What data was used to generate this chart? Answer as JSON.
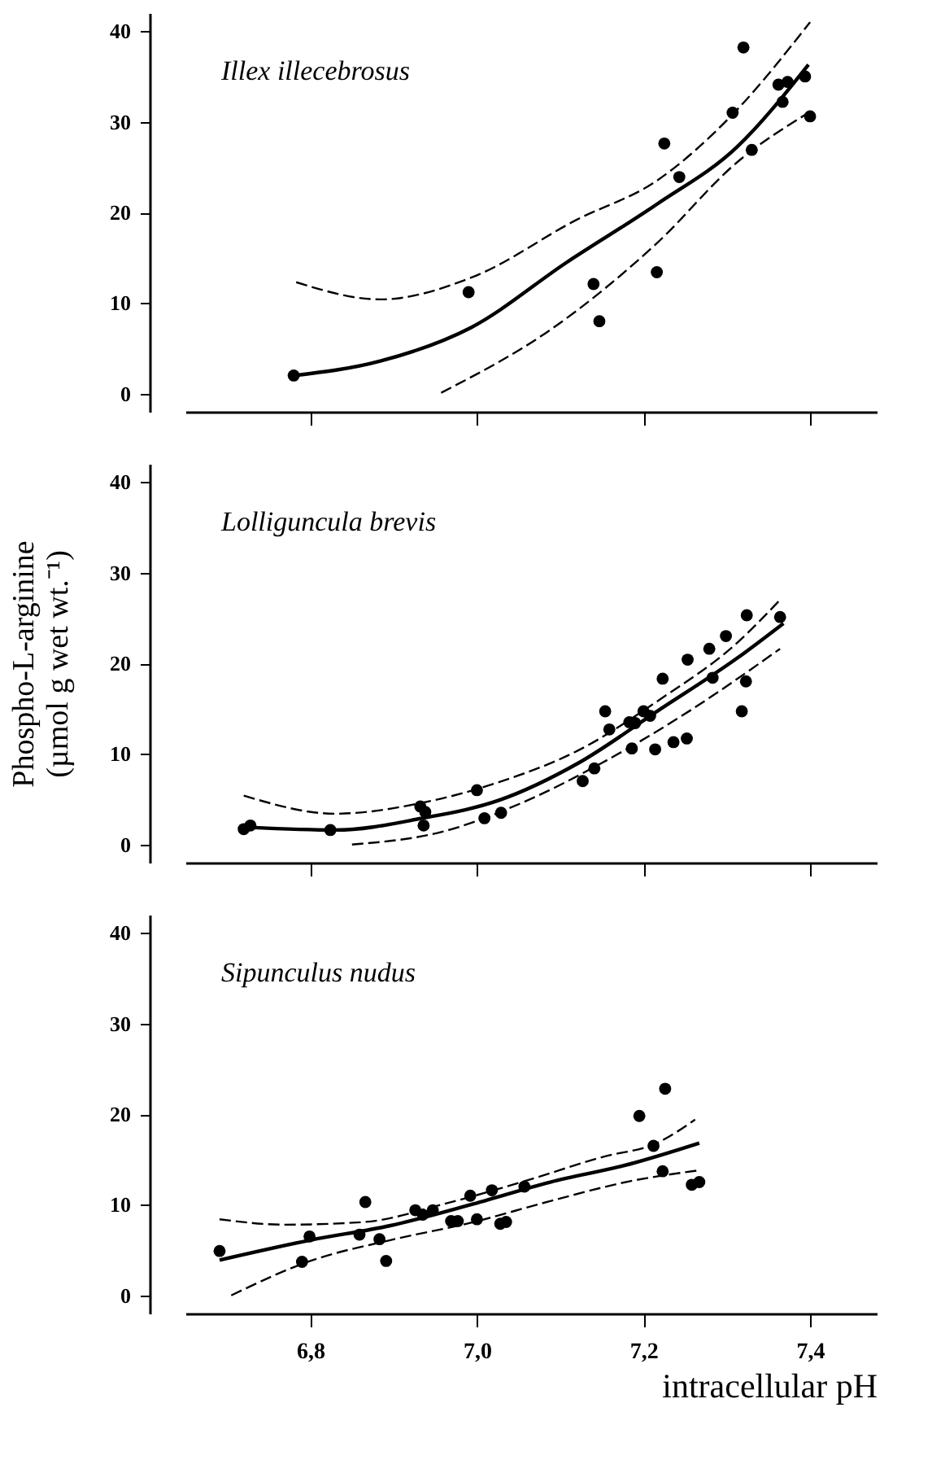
{
  "chart_data": [
    {
      "type": "scatter",
      "title": "Illex illecebrosus",
      "xlim": [
        6.65,
        7.48
      ],
      "ylim": [
        -2,
        42
      ],
      "xticks": [
        6.8,
        7.0,
        7.2,
        7.4
      ],
      "yticks": [
        0,
        10,
        20,
        30,
        40
      ],
      "tick_labels": "y",
      "grid": false,
      "series": [
        {
          "type": "scatter",
          "marker": "circle",
          "color": "#000000",
          "x": [
            6.78,
            6.99,
            7.14,
            7.147,
            7.216,
            7.225,
            7.243,
            7.307,
            7.32,
            7.33,
            7.362,
            7.367,
            7.373,
            7.394,
            7.4
          ],
          "values": [
            2,
            11.2,
            12.1,
            8,
            13.4,
            27.6,
            23.9,
            31,
            38.2,
            26.9,
            34.1,
            32.2,
            34.4,
            35,
            30.6
          ]
        },
        {
          "type": "line",
          "line_style": "solid",
          "color": "#000000",
          "x": [
            6.78,
            6.884,
            6.993,
            7.108,
            7.216,
            7.312,
            7.398
          ],
          "values": [
            2,
            3.6,
            7.3,
            14.5,
            20.9,
            27.2,
            36.3
          ]
        },
        {
          "type": "line",
          "line_style": "dashed",
          "color": "#000000",
          "x": [
            6.783,
            6.884,
            6.993,
            7.12,
            7.216,
            7.312,
            7.4
          ],
          "values": [
            12.3,
            10.4,
            12.8,
            19.2,
            23.5,
            31.3,
            41
          ]
        },
        {
          "type": "line",
          "line_style": "dashed",
          "color": "#000000",
          "x": [
            6.957,
            7.089,
            7.216,
            7.312,
            7.4
          ],
          "values": [
            0.1,
            7.1,
            16.6,
            25.5,
            31.1
          ]
        }
      ]
    },
    {
      "type": "scatter",
      "title": "Lolliguncula brevis",
      "ylabel": "Phospho-L-arginine (µmol g wet wt.⁻¹)",
      "xlim": [
        6.65,
        7.48
      ],
      "ylim": [
        -2,
        42
      ],
      "xticks": [
        6.8,
        7.0,
        7.2,
        7.4
      ],
      "yticks": [
        0,
        10,
        20,
        30,
        40
      ],
      "tick_labels": "y",
      "grid": false,
      "series": [
        {
          "type": "scatter",
          "marker": "circle",
          "color": "#000000",
          "x": [
            6.72,
            6.728,
            6.824,
            6.932,
            6.938,
            6.936,
            7.0,
            7.009,
            7.029,
            7.127,
            7.141,
            7.154,
            7.159,
            7.183,
            7.186,
            7.19,
            7.2,
            7.208,
            7.214,
            7.223,
            7.236,
            7.252,
            7.253,
            7.279,
            7.283,
            7.299,
            7.318,
            7.323,
            7.324,
            7.364
          ],
          "values": [
            1.7,
            2.1,
            1.6,
            4.2,
            3.6,
            2.1,
            6,
            2.9,
            3.5,
            7,
            8.4,
            14.7,
            12.7,
            13.5,
            10.6,
            13.4,
            14.7,
            14.2,
            10.5,
            18.3,
            11.3,
            11.7,
            20.4,
            21.6,
            18.4,
            23,
            14.7,
            18,
            25.3,
            25.1
          ]
        },
        {
          "type": "line",
          "line_style": "solid",
          "color": "#000000",
          "x": [
            6.726,
            6.83,
            6.934,
            7.027,
            7.122,
            7.218,
            7.313,
            7.368
          ],
          "values": [
            1.9,
            1.6,
            2.9,
            4.9,
            9,
            14.8,
            20.6,
            24.4
          ]
        },
        {
          "type": "line",
          "line_style": "dashed",
          "color": "#000000",
          "x": [
            6.72,
            6.83,
            6.934,
            7.027,
            7.122,
            7.218,
            7.313,
            7.364
          ],
          "values": [
            5.4,
            3.4,
            4.6,
            6.9,
            10.4,
            15.9,
            22.3,
            27
          ]
        },
        {
          "type": "line",
          "line_style": "dashed",
          "color": "#000000",
          "x": [
            6.85,
            6.958,
            7.054,
            7.15,
            7.246,
            7.364
          ],
          "values": [
            0,
            1.4,
            4.6,
            9,
            14.2,
            21.6
          ]
        }
      ]
    },
    {
      "type": "scatter",
      "title": "Sipunculus nudus",
      "xlabel": "intracellular pH",
      "xlim": [
        6.65,
        7.48
      ],
      "ylim": [
        -2,
        42
      ],
      "xticks": [
        {
          "value": 6.8,
          "label": "6,8"
        },
        {
          "value": 7.0,
          "label": "7,0"
        },
        {
          "value": 7.2,
          "label": "7,2"
        },
        {
          "value": 7.4,
          "label": "7,4"
        }
      ],
      "yticks": [
        0,
        10,
        20,
        30,
        40
      ],
      "grid": false,
      "series": [
        {
          "type": "scatter",
          "marker": "circle",
          "color": "#000000",
          "x": [
            6.691,
            6.79,
            6.799,
            6.859,
            6.866,
            6.883,
            6.891,
            6.926,
            6.935,
            6.947,
            6.969,
            6.977,
            6.992,
            7.0,
            7.018,
            7.028,
            7.035,
            7.057,
            7.195,
            7.212,
            7.223,
            7.226,
            7.258,
            7.267
          ],
          "values": [
            4.9,
            3.7,
            6.5,
            6.7,
            10.3,
            6.2,
            3.8,
            9.4,
            8.9,
            9.4,
            8.2,
            8.2,
            11,
            8.4,
            11.6,
            7.9,
            8.1,
            12,
            19.8,
            16.5,
            13.7,
            22.8,
            12.2,
            12.5
          ]
        },
        {
          "type": "line",
          "line_style": "solid",
          "color": "#000000",
          "x": [
            6.691,
            6.8,
            6.896,
            6.992,
            7.088,
            7.184,
            7.267
          ],
          "values": [
            3.9,
            6.1,
            7.7,
            10,
            12.5,
            14.5,
            16.8
          ]
        },
        {
          "type": "line",
          "line_style": "dashed",
          "color": "#000000",
          "x": [
            6.691,
            6.769,
            6.865,
            6.961,
            7.057,
            7.152,
            7.216,
            7.262
          ],
          "values": [
            8.4,
            7.8,
            8.1,
            10.1,
            12.6,
            15.3,
            16.8,
            19.4
          ]
        },
        {
          "type": "line",
          "line_style": "dashed",
          "color": "#000000",
          "x": [
            6.705,
            6.8,
            6.896,
            6.992,
            7.088,
            7.184,
            7.267
          ],
          "values": [
            0,
            3.8,
            6.1,
            8,
            10.4,
            12.6,
            13.8
          ]
        }
      ]
    }
  ]
}
